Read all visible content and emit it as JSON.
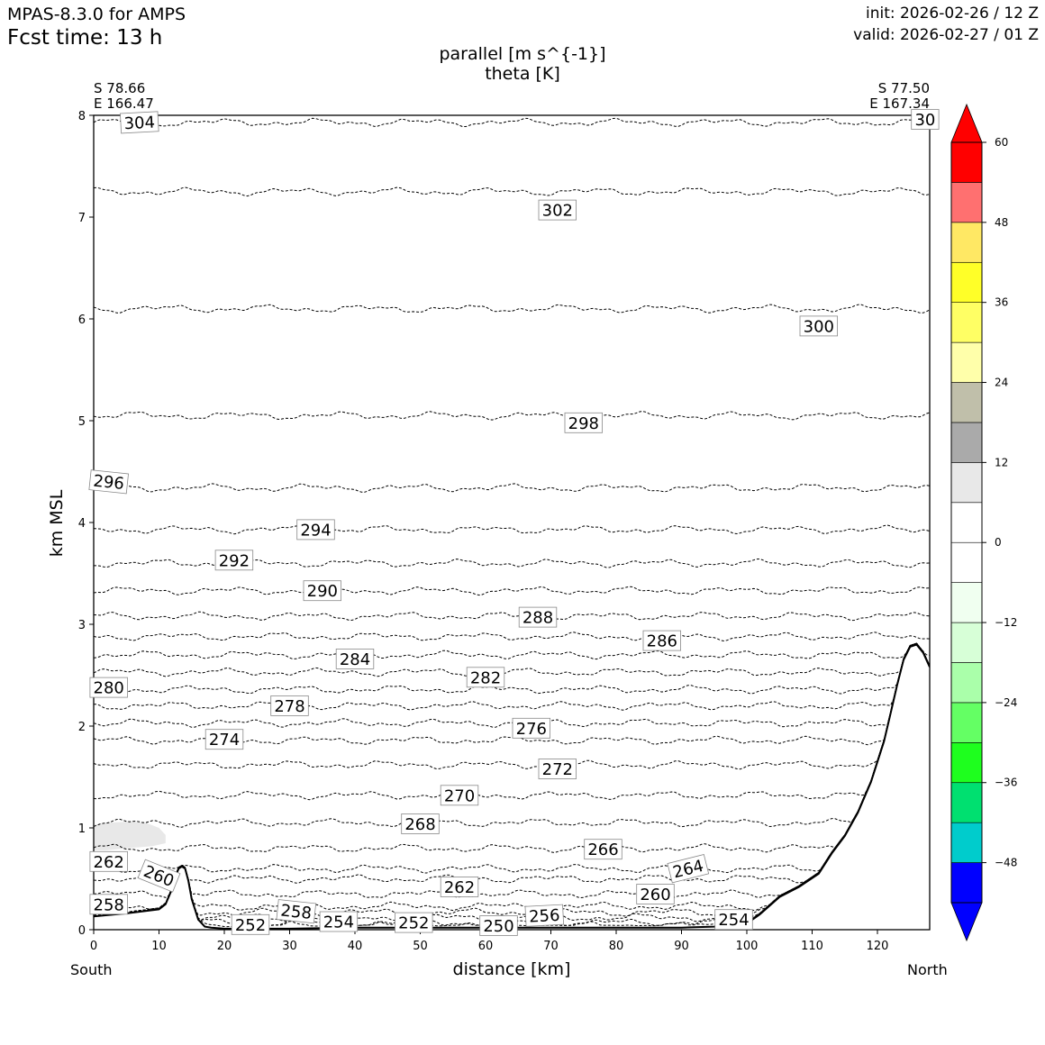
{
  "header": {
    "model": "MPAS-8.3.0 for AMPS",
    "fcst_time": "Fcst time:   13 h",
    "init": "init: 2026-02-26 / 12 Z",
    "valid": "valid: 2026-02-27 / 01 Z"
  },
  "titles": {
    "line1": "parallel [m s^{-1}]",
    "line2": "theta [K]"
  },
  "endpoints": {
    "left": {
      "lat": "S 78.66",
      "lon": "E 166.47",
      "side": "South"
    },
    "right": {
      "lat": "S 77.50",
      "lon": "E 167.34",
      "side": "North"
    }
  },
  "chart_data": {
    "type": "cross-section contour",
    "xlabel": "distance [km]",
    "ylabel": "km MSL",
    "xlim": [
      0,
      128
    ],
    "ylim": [
      0,
      8
    ],
    "x_ticks": [
      0,
      10,
      20,
      30,
      40,
      50,
      60,
      70,
      80,
      90,
      100,
      110,
      120
    ],
    "y_ticks": [
      0,
      1,
      2,
      3,
      4,
      5,
      6,
      7,
      8
    ],
    "terrain": {
      "x": [
        0,
        5,
        10,
        11,
        12,
        12.5,
        13,
        13.5,
        14,
        14.5,
        15,
        16,
        17,
        18,
        20,
        30,
        40,
        50,
        60,
        70,
        80,
        90,
        95,
        100,
        102,
        105,
        108,
        111,
        113,
        115,
        117,
        119,
        121,
        122,
        123,
        124,
        125,
        126,
        127,
        128
      ],
      "y": [
        0.13,
        0.16,
        0.2,
        0.25,
        0.4,
        0.52,
        0.6,
        0.62,
        0.6,
        0.48,
        0.3,
        0.1,
        0.03,
        0.02,
        0.01,
        0.01,
        0.02,
        0.02,
        0.02,
        0.02,
        0.02,
        0.02,
        0.03,
        0.06,
        0.15,
        0.32,
        0.42,
        0.55,
        0.75,
        0.92,
        1.15,
        1.45,
        1.85,
        2.12,
        2.4,
        2.65,
        2.78,
        2.8,
        2.72,
        2.58
      ]
    },
    "theta_contours": [
      {
        "level": 304,
        "y": 7.93,
        "label": "304",
        "label_x": 7,
        "label_y": 7.93,
        "label_rot": -3
      },
      {
        "level": 302,
        "y": 7.25,
        "label": "302",
        "label_x": 71,
        "label_y": 7.07,
        "label_rot": 0
      },
      {
        "level": 300,
        "y": 6.1,
        "label": "300",
        "label_x": 111,
        "label_y": 5.93,
        "label_rot": 0
      },
      {
        "level": 298,
        "y": 5.05,
        "label": "298",
        "label_x": 75,
        "label_y": 4.98,
        "label_rot": 0
      },
      {
        "level": 296,
        "y": 4.34,
        "label": "296",
        "label_x": 2.3,
        "label_y": 4.4,
        "label_rot": 6
      },
      {
        "level": 294,
        "y": 3.93,
        "label": "294",
        "label_x": 34,
        "label_y": 3.93,
        "label_rot": 0
      },
      {
        "level": 292,
        "y": 3.6,
        "label": "292",
        "label_x": 21.5,
        "label_y": 3.63,
        "label_rot": 0
      },
      {
        "level": 290,
        "y": 3.33,
        "label": "290",
        "label_x": 35,
        "label_y": 3.33,
        "label_rot": 0
      },
      {
        "level": 288,
        "y": 3.08,
        "label": "288",
        "label_x": 68,
        "label_y": 3.07,
        "label_rot": 0
      },
      {
        "level": 286,
        "y": 2.88,
        "label": "286",
        "label_x": 87,
        "label_y": 2.84,
        "label_rot": 0
      },
      {
        "level": 284,
        "y": 2.7,
        "label": "284",
        "label_x": 40,
        "label_y": 2.66,
        "label_rot": 0
      },
      {
        "level": 282,
        "y": 2.53,
        "label": "282",
        "label_x": 60,
        "label_y": 2.48,
        "label_rot": 0
      },
      {
        "level": 280,
        "y": 2.36,
        "label": "280",
        "label_x": 2.3,
        "label_y": 2.38,
        "label_rot": 0
      },
      {
        "level": 278,
        "y": 2.2,
        "label": "278",
        "label_x": 30,
        "label_y": 2.2,
        "label_rot": 0
      },
      {
        "level": 276,
        "y": 2.03,
        "label": "276",
        "label_x": 67,
        "label_y": 1.98,
        "label_rot": 0
      },
      {
        "level": 274,
        "y": 1.86,
        "label": "274",
        "label_x": 20,
        "label_y": 1.87,
        "label_rot": 0
      },
      {
        "level": 272,
        "y": 1.62,
        "label": "272",
        "label_x": 71,
        "label_y": 1.58,
        "label_rot": 0
      },
      {
        "level": 270,
        "y": 1.32,
        "label": "270",
        "label_x": 56,
        "label_y": 1.32,
        "label_rot": 0
      },
      {
        "level": 268,
        "y": 1.05,
        "label": "268",
        "label_x": 50,
        "label_y": 1.04,
        "label_rot": 0
      },
      {
        "level": 266,
        "y": 0.8,
        "label": "266",
        "label_x": 78,
        "label_y": 0.79,
        "label_rot": 0
      },
      {
        "level": 264,
        "y": 0.6,
        "label": "264",
        "label_x": 91,
        "label_y": 0.6,
        "label_rot": -14
      },
      {
        "level": 262,
        "y": 0.5,
        "label": "262",
        "label_x": 56,
        "label_y": 0.42,
        "label_rot": 0
      },
      {
        "level": 260,
        "y": 0.35,
        "label": "260",
        "label_x": 86,
        "label_y": 0.35,
        "label_rot": 0
      },
      {
        "level": 258,
        "y": 0.23,
        "label": "258",
        "label_x": 31,
        "label_y": 0.18,
        "label_rot": 6
      },
      {
        "level": 256,
        "y": 0.17,
        "label": "256",
        "label_x": 69,
        "label_y": 0.14,
        "label_rot": -3
      },
      {
        "level": 254,
        "y": 0.12,
        "label": "254",
        "label_x": 98,
        "label_y": 0.1,
        "label_rot": 0
      },
      {
        "level": 252,
        "y": 0.07,
        "label": "252",
        "label_x": 24,
        "label_y": 0.05,
        "label_rot": 0
      },
      {
        "level": 250,
        "y": 0.04,
        "label": "250",
        "label_x": 62,
        "label_y": 0.04,
        "label_rot": 0
      }
    ],
    "extra_contour_labels": [
      {
        "text": "262",
        "x": 2.3,
        "y": 0.67,
        "rot": 0
      },
      {
        "text": "260",
        "x": 10,
        "y": 0.53,
        "rot": 22
      },
      {
        "text": "258",
        "x": 2.3,
        "y": 0.25,
        "rot": 0
      },
      {
        "text": "254",
        "x": 37.5,
        "y": 0.08,
        "rot": 0
      },
      {
        "text": "252",
        "x": 49,
        "y": 0.07,
        "rot": 0
      },
      {
        "text": "30",
        "x": 127.3,
        "y": 7.96,
        "rot": 0
      }
    ],
    "wind_shading": {
      "description": "light-grey parallel wind 6-12 m/s patch near x 0-11 km, 0.78-1.05 km",
      "x": [
        0,
        2,
        5,
        8,
        10,
        11,
        11,
        9,
        5,
        2,
        0
      ],
      "y": [
        1.03,
        1.05,
        1.06,
        1.05,
        1.0,
        0.93,
        0.85,
        0.82,
        0.8,
        0.78,
        0.78
      ]
    },
    "colorbar": {
      "label": "parallel [m s^{-1}]",
      "levels": [
        -54,
        -48,
        -42,
        -36,
        -30,
        -24,
        -18,
        -12,
        -6,
        0,
        6,
        12,
        18,
        24,
        30,
        36,
        42,
        48,
        54,
        60
      ],
      "colors": [
        "#0000ff",
        "#00cccc",
        "#00e070",
        "#1eff1e",
        "#64ff64",
        "#aaffaa",
        "#d7ffd7",
        "#f0fff0",
        "#ffffff",
        "#ffffff",
        "#e8e8e8",
        "#aaaaaa",
        "#c0bfaa",
        "#ffffaa",
        "#ffff64",
        "#ffff28",
        "#ffe864",
        "#ff7070",
        "#ff0000"
      ],
      "under_color": "#0000ff",
      "over_color": "#ff0000",
      "tick_labels": [
        "60",
        "48",
        "36",
        "24",
        "12",
        "0",
        "−12",
        "−24",
        "−36",
        "−48"
      ],
      "tick_values": [
        60,
        48,
        36,
        24,
        12,
        0,
        -12,
        -24,
        -36,
        -48
      ]
    }
  }
}
